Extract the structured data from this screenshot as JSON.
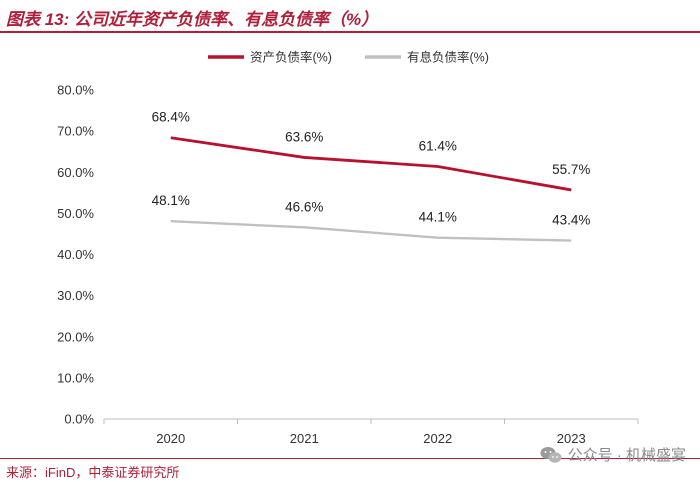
{
  "header": {
    "title": "图表 13: 公司近年资产负债率、有息负债率（%）"
  },
  "footer": {
    "source": "来源：iFinD，中泰证券研究所"
  },
  "watermark": {
    "text": "公众号 · 机械盛宴",
    "icon": "wechat-icon"
  },
  "colors": {
    "brand": "#b01f3a",
    "series1": "#b8102e",
    "series2": "#c0c0c0"
  },
  "chart_data": {
    "type": "line",
    "title": "",
    "xlabel": "",
    "ylabel": "",
    "categories": [
      "2020",
      "2021",
      "2022",
      "2023"
    ],
    "ylim": [
      0,
      80
    ],
    "yticks": [
      0,
      10,
      20,
      30,
      40,
      50,
      60,
      70,
      80
    ],
    "ytick_labels": [
      "0.0%",
      "10.0%",
      "20.0%",
      "30.0%",
      "40.0%",
      "50.0%",
      "60.0%",
      "70.0%",
      "80.0%"
    ],
    "legend_position": "top-center",
    "grid": false,
    "series": [
      {
        "name": "资产负债率(%)",
        "values": [
          68.4,
          63.6,
          61.4,
          55.7
        ],
        "labels": [
          "68.4%",
          "63.6%",
          "61.4%",
          "55.7%"
        ]
      },
      {
        "name": "有息负债率(%)",
        "values": [
          48.1,
          46.6,
          44.1,
          43.4
        ],
        "labels": [
          "48.1%",
          "46.6%",
          "44.1%",
          "43.4%"
        ]
      }
    ]
  }
}
